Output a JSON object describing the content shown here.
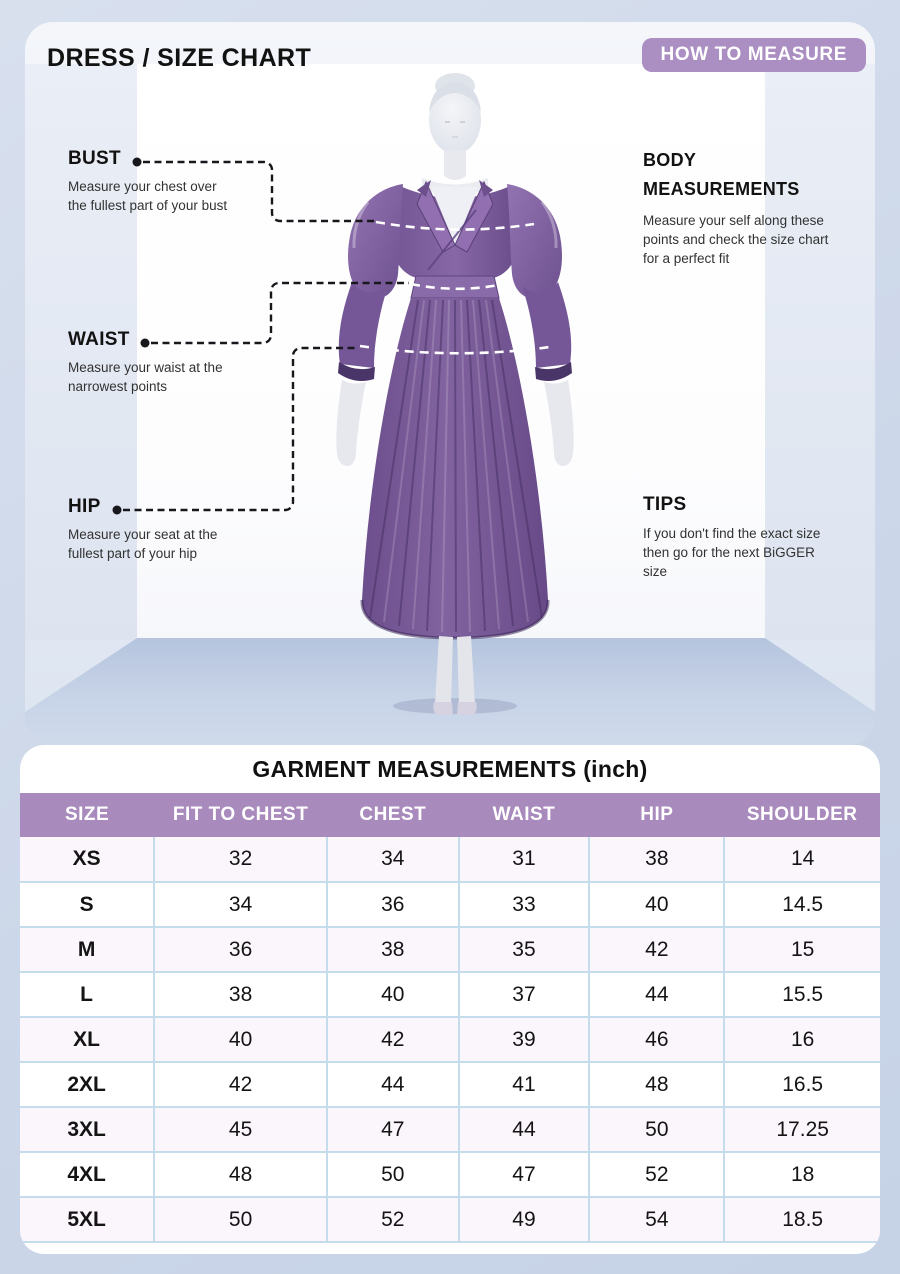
{
  "colors": {
    "page_bg": "#ccd7e9",
    "accent_purple": "#a98abc",
    "badge_bg": "#ab8ec2",
    "dress_purple": "#7a5c9b",
    "table_border": "#c4dcec",
    "row_alt_bg": "#fbf5fc",
    "text_dark": "#161616"
  },
  "hero": {
    "title": "DRESS / SIZE CHART",
    "badge": "HOW TO MEASURE",
    "bust": {
      "label": "BUST",
      "desc": "Measure your chest over the fullest part of your bust"
    },
    "waist": {
      "label": "WAIST",
      "desc": "Measure your waist at the narrowest points"
    },
    "hip": {
      "label": "HIP",
      "desc": "Measure your seat at the fullest part of your hip"
    },
    "body": {
      "label": "BODY MEASUREMENTS",
      "desc": "Measure your self along these points and check the size chart for a perfect fit"
    },
    "tips": {
      "label": "TIPS",
      "desc": "If you don't find the exact size then go for the next BiGGER size"
    }
  },
  "table": {
    "title": "GARMENT MEASUREMENTS (inch)",
    "columns": [
      "SIZE",
      "FIT TO CHEST",
      "CHEST",
      "WAIST",
      "HIP",
      "SHOULDER"
    ],
    "rows": [
      {
        "size": "XS",
        "values": [
          "32",
          "34",
          "31",
          "38",
          "14"
        ]
      },
      {
        "size": "S",
        "values": [
          "34",
          "36",
          "33",
          "40",
          "14.5"
        ]
      },
      {
        "size": "M",
        "values": [
          "36",
          "38",
          "35",
          "42",
          "15"
        ]
      },
      {
        "size": "L",
        "values": [
          "38",
          "40",
          "37",
          "44",
          "15.5"
        ]
      },
      {
        "size": "XL",
        "values": [
          "40",
          "42",
          "39",
          "46",
          "16"
        ]
      },
      {
        "size": "2XL",
        "values": [
          "42",
          "44",
          "41",
          "48",
          "16.5"
        ]
      },
      {
        "size": "3XL",
        "values": [
          "45",
          "47",
          "44",
          "50",
          "17.25"
        ]
      },
      {
        "size": "4XL",
        "values": [
          "48",
          "50",
          "47",
          "52",
          "18"
        ]
      },
      {
        "size": "5XL",
        "values": [
          "50",
          "52",
          "49",
          "54",
          "18.5"
        ]
      }
    ]
  },
  "chart_data": {
    "type": "table",
    "title": "GARMENT MEASUREMENTS (inch)",
    "columns": [
      "SIZE",
      "FIT TO CHEST",
      "CHEST",
      "WAIST",
      "HIP",
      "SHOULDER"
    ],
    "rows": [
      [
        "XS",
        32,
        34,
        31,
        38,
        14
      ],
      [
        "S",
        34,
        36,
        33,
        40,
        14.5
      ],
      [
        "M",
        36,
        38,
        35,
        42,
        15
      ],
      [
        "L",
        38,
        40,
        37,
        44,
        15.5
      ],
      [
        "XL",
        40,
        42,
        39,
        46,
        16
      ],
      [
        "2XL",
        42,
        44,
        41,
        48,
        16.5
      ],
      [
        "3XL",
        45,
        47,
        44,
        50,
        17.25
      ],
      [
        "4XL",
        48,
        50,
        47,
        52,
        18
      ],
      [
        "5XL",
        50,
        52,
        49,
        54,
        18.5
      ]
    ]
  }
}
